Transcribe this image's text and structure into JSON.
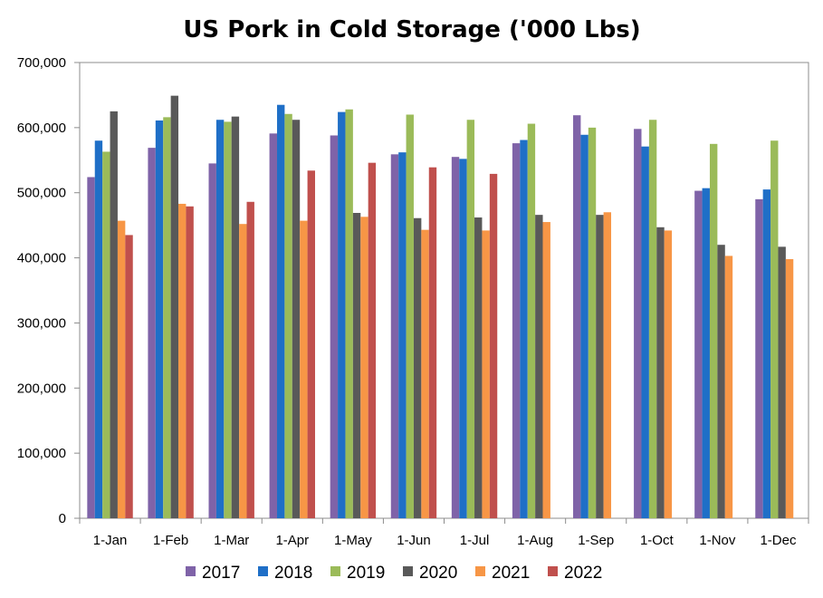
{
  "chart_data": {
    "type": "bar",
    "title": "US Pork in Cold Storage ('000 Lbs)",
    "xlabel": "",
    "ylabel": "",
    "ylim": [
      0,
      700000
    ],
    "y_ticks": [
      0,
      100000,
      200000,
      300000,
      400000,
      500000,
      600000,
      700000
    ],
    "y_tick_labels": [
      "0",
      "100,000",
      "200,000",
      "300,000",
      "400,000",
      "500,000",
      "600,000",
      "700,000"
    ],
    "grid": false,
    "legend_position": "bottom",
    "categories": [
      "1-Jan",
      "1-Feb",
      "1-Mar",
      "1-Apr",
      "1-May",
      "1-Jun",
      "1-Jul",
      "1-Aug",
      "1-Sep",
      "1-Oct",
      "1-Nov",
      "1-Dec"
    ],
    "series": [
      {
        "name": "2017",
        "color": "#7f63a8",
        "values": [
          524000,
          569000,
          545000,
          591000,
          588000,
          559000,
          555000,
          576000,
          619000,
          598000,
          503000,
          490000
        ]
      },
      {
        "name": "2018",
        "color": "#1f6fc7",
        "values": [
          580000,
          611000,
          612000,
          635000,
          624000,
          562000,
          552000,
          581000,
          589000,
          571000,
          507000,
          505000
        ]
      },
      {
        "name": "2019",
        "color": "#9bbb59",
        "values": [
          563000,
          616000,
          609000,
          621000,
          628000,
          620000,
          612000,
          606000,
          600000,
          612000,
          575000,
          580000
        ]
      },
      {
        "name": "2020",
        "color": "#595959",
        "values": [
          625000,
          649000,
          617000,
          612000,
          469000,
          461000,
          462000,
          466000,
          466000,
          447000,
          420000,
          417000
        ]
      },
      {
        "name": "2021",
        "color": "#f79646",
        "values": [
          457000,
          483000,
          452000,
          457000,
          463000,
          443000,
          442000,
          455000,
          470000,
          442000,
          403000,
          398000
        ]
      },
      {
        "name": "2022",
        "color": "#c0504d",
        "values": [
          435000,
          479000,
          486000,
          534000,
          546000,
          539000,
          529000,
          null,
          null,
          null,
          null,
          null
        ]
      }
    ]
  }
}
